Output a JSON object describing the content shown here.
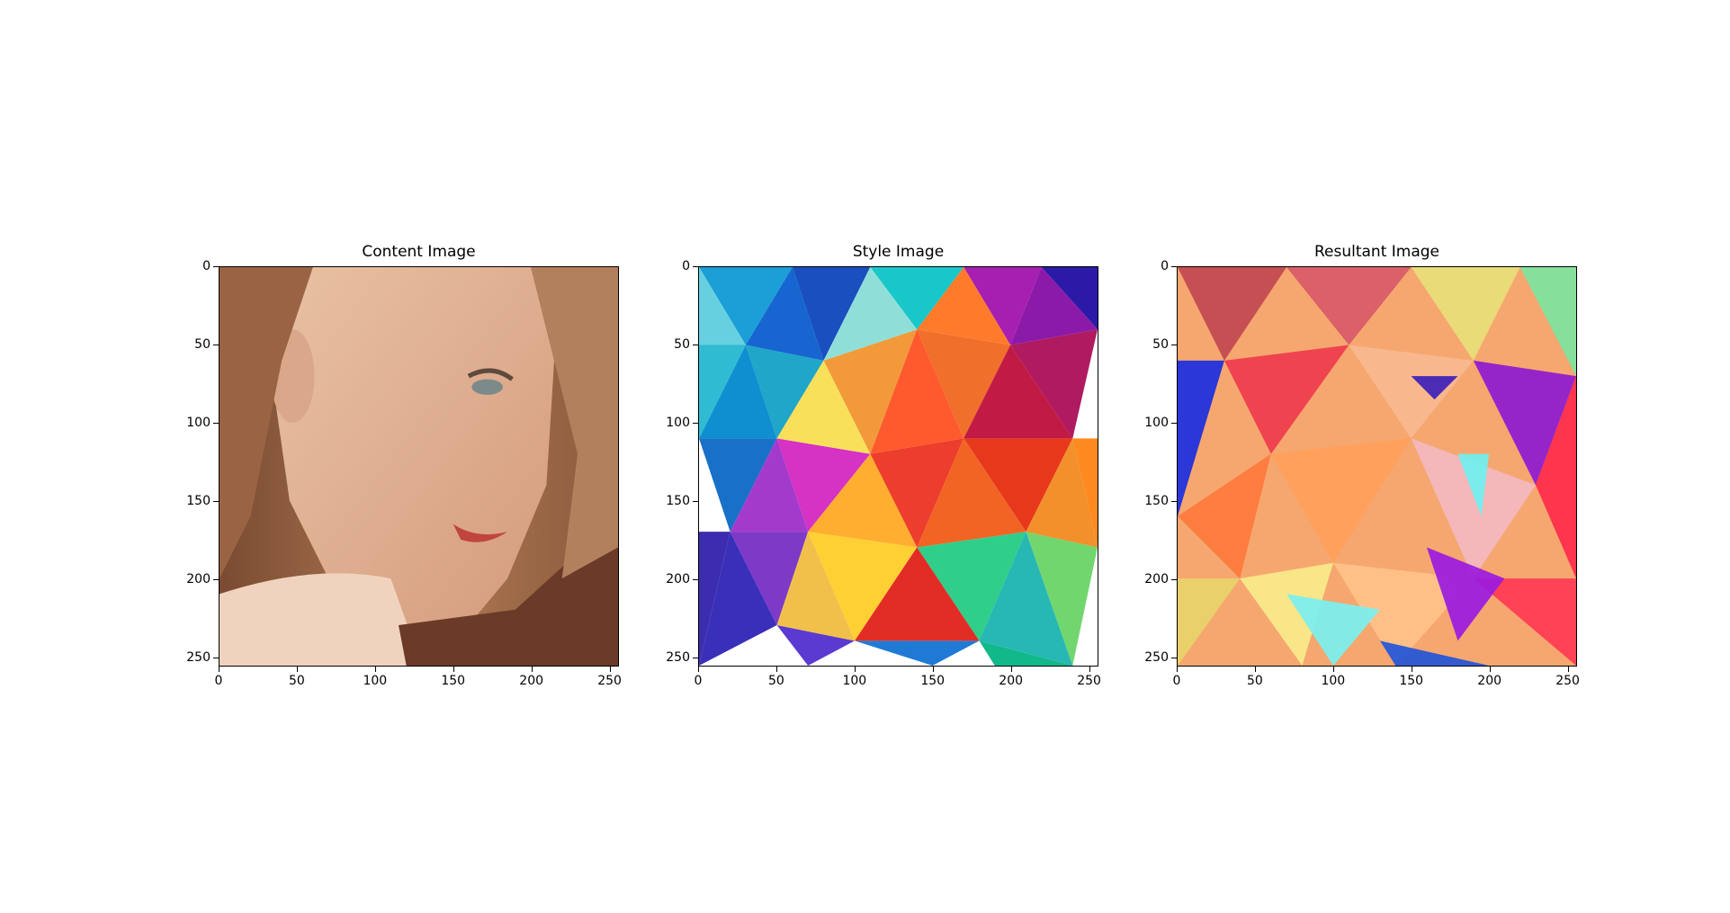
{
  "figure": {
    "panels": [
      {
        "id": "content",
        "title": "Content Image",
        "image": "portrait-photo"
      },
      {
        "id": "style",
        "title": "Style Image",
        "image": "low-poly-rainbow-pattern"
      },
      {
        "id": "result",
        "title": "Resultant Image",
        "image": "stylized-portrait"
      }
    ],
    "x_ticks": [
      "0",
      "50",
      "100",
      "150",
      "200",
      "250"
    ],
    "y_ticks": [
      "0",
      "50",
      "100",
      "150",
      "200",
      "250"
    ],
    "x_tick_values": [
      0,
      50,
      100,
      150,
      200,
      250
    ],
    "y_tick_values": [
      0,
      50,
      100,
      150,
      200,
      250
    ],
    "axis_extent": [
      0,
      256
    ]
  }
}
